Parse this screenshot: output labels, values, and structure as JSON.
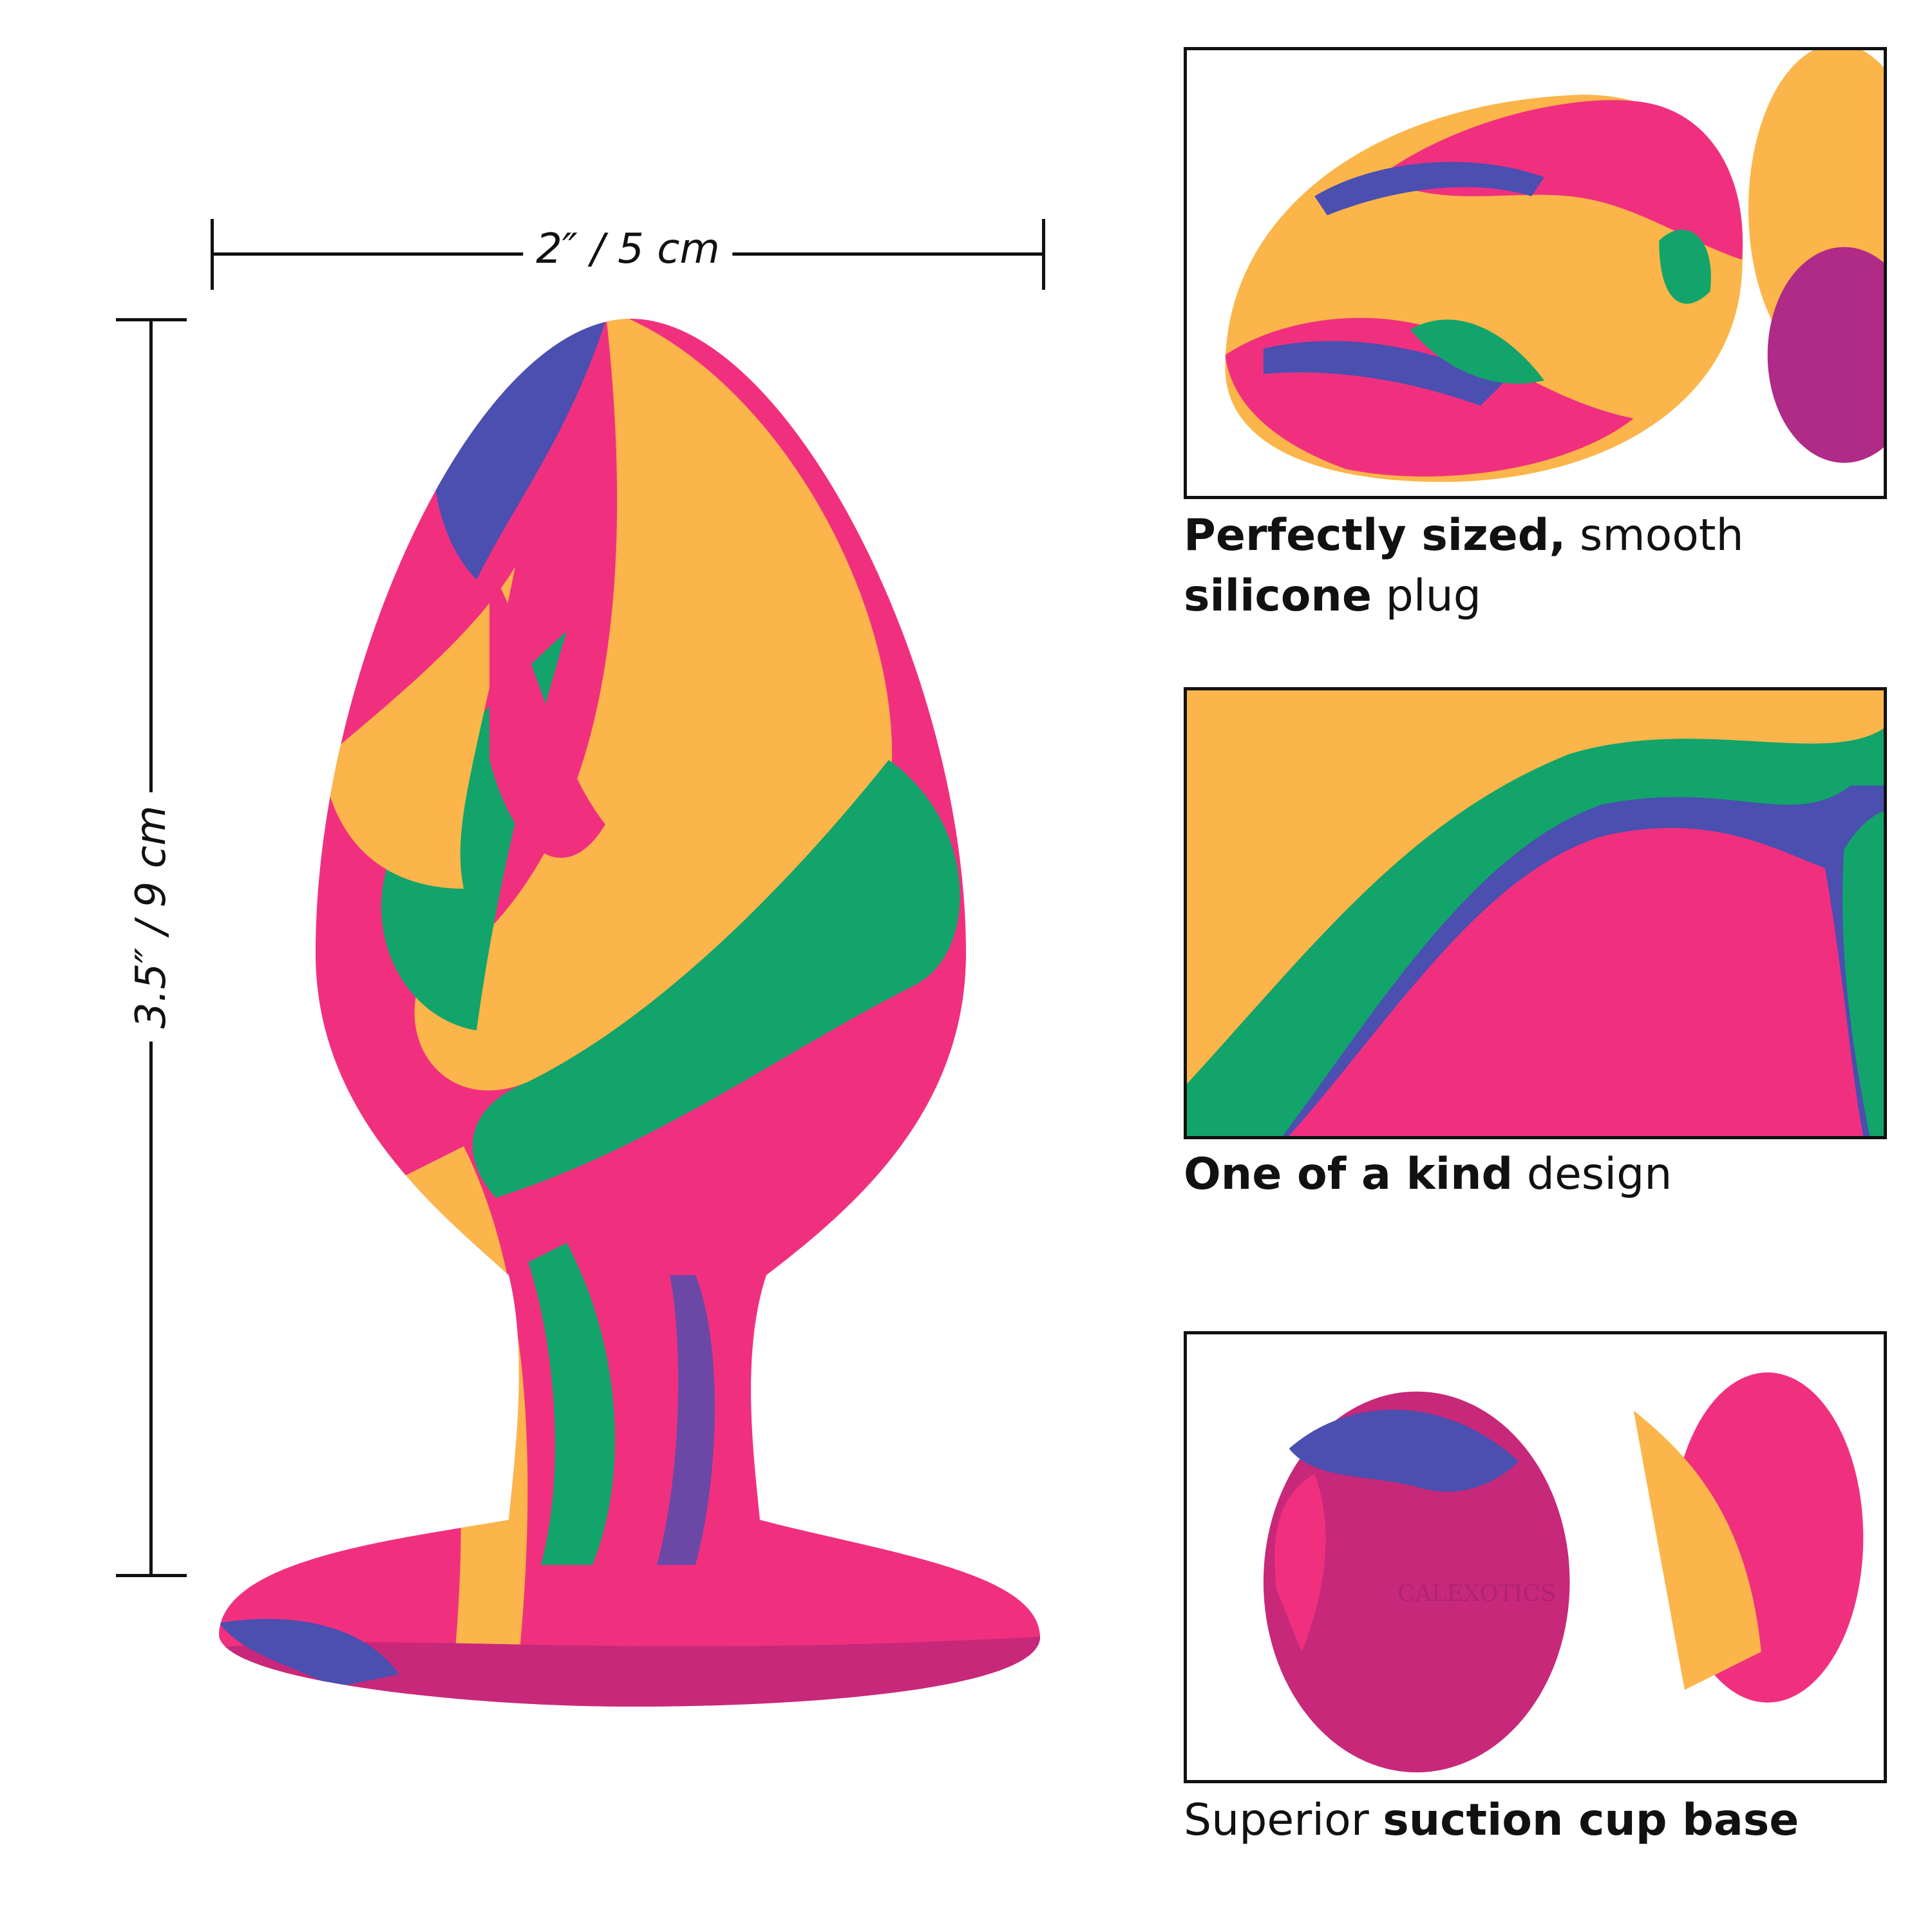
{
  "dimensions": {
    "width_label": "2″ / 5 cm",
    "height_label": "3.5″ / 9 cm"
  },
  "colors": {
    "pink": "#f0307f",
    "yellow": "#fbb54a",
    "green": "#12a46a",
    "blue": "#4a4fb0",
    "magenta": "#c8287a"
  },
  "panels": [
    {
      "caption": [
        {
          "text": "Perfectly sized,",
          "bold": true
        },
        {
          "text": " smooth ",
          "bold": false
        },
        {
          "text": "silicone",
          "bold": true
        },
        {
          "text": " plug",
          "bold": false
        }
      ]
    },
    {
      "caption": [
        {
          "text": "One of a kind",
          "bold": true
        },
        {
          "text": " design",
          "bold": false
        }
      ]
    },
    {
      "caption": [
        {
          "text": "Superior ",
          "bold": false
        },
        {
          "text": "suction cup base",
          "bold": true
        }
      ]
    }
  ],
  "base_logo_text": "CALEXOTICS"
}
